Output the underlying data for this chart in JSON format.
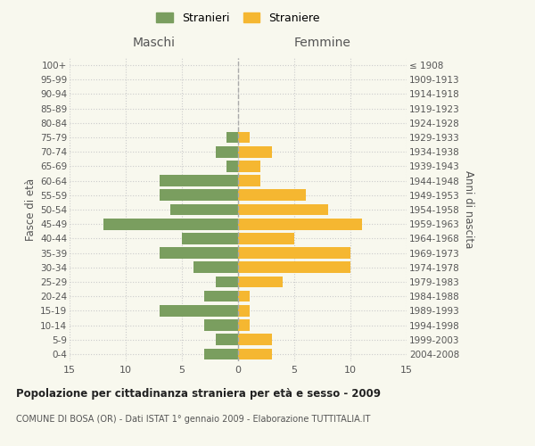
{
  "age_groups": [
    "0-4",
    "5-9",
    "10-14",
    "15-19",
    "20-24",
    "25-29",
    "30-34",
    "35-39",
    "40-44",
    "45-49",
    "50-54",
    "55-59",
    "60-64",
    "65-69",
    "70-74",
    "75-79",
    "80-84",
    "85-89",
    "90-94",
    "95-99",
    "100+"
  ],
  "birth_years": [
    "2004-2008",
    "1999-2003",
    "1994-1998",
    "1989-1993",
    "1984-1988",
    "1979-1983",
    "1974-1978",
    "1969-1973",
    "1964-1968",
    "1959-1963",
    "1954-1958",
    "1949-1953",
    "1944-1948",
    "1939-1943",
    "1934-1938",
    "1929-1933",
    "1924-1928",
    "1919-1923",
    "1914-1918",
    "1909-1913",
    "≤ 1908"
  ],
  "males": [
    3,
    2,
    3,
    7,
    3,
    2,
    4,
    7,
    5,
    12,
    6,
    7,
    7,
    1,
    2,
    1,
    0,
    0,
    0,
    0,
    0
  ],
  "females": [
    3,
    3,
    1,
    1,
    1,
    4,
    10,
    10,
    5,
    11,
    8,
    6,
    2,
    2,
    3,
    1,
    0,
    0,
    0,
    0,
    0
  ],
  "male_color": "#7a9e5f",
  "female_color": "#f5b731",
  "background_color": "#f8f8ee",
  "grid_color": "#cccccc",
  "center_line_color": "#aaaaaa",
  "xlim": 15,
  "title": "Popolazione per cittadinanza straniera per età e sesso - 2009",
  "subtitle": "COMUNE DI BOSA (OR) - Dati ISTAT 1° gennaio 2009 - Elaborazione TUTTITALIA.IT",
  "ylabel_left": "Fasce di età",
  "ylabel_right": "Anni di nascita",
  "header_left": "Maschi",
  "header_right": "Femmine",
  "legend_males": "Stranieri",
  "legend_females": "Straniere"
}
